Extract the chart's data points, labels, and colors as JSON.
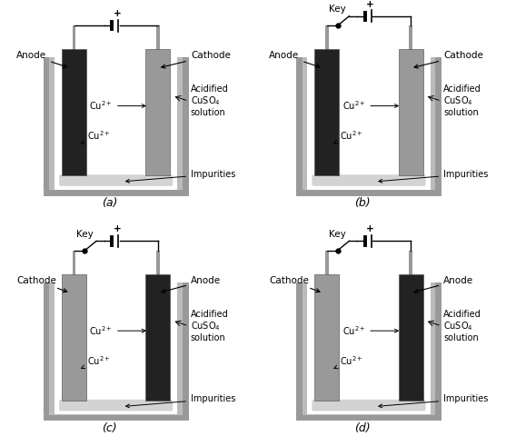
{
  "panels": [
    {
      "label": "(a)",
      "has_key": false,
      "left_label": "Anode",
      "right_label": "Cathode",
      "left_dark": true,
      "right_dark": false
    },
    {
      "label": "(b)",
      "has_key": true,
      "left_label": "Anode",
      "right_label": "Cathode",
      "left_dark": true,
      "right_dark": false
    },
    {
      "label": "(c)",
      "has_key": true,
      "left_label": "Cathode",
      "right_label": "Anode",
      "left_dark": false,
      "right_dark": true
    },
    {
      "label": "(d)",
      "has_key": true,
      "left_label": "Cathode",
      "right_label": "Anode",
      "left_dark": false,
      "right_dark": true
    }
  ],
  "bg_color": "#ffffff",
  "container_outer": "#999999",
  "container_inner_wall": "#bbbbbb",
  "solution_color": "#ffffff",
  "impurity_color": "#cccccc",
  "dark_electrode": "#222222",
  "light_electrode": "#999999",
  "wire_color": "#000000",
  "text_color": "#000000",
  "font_size_label": 7.5,
  "font_size_cu": 7.0,
  "font_size_panel": 9,
  "font_size_key": 7.5
}
